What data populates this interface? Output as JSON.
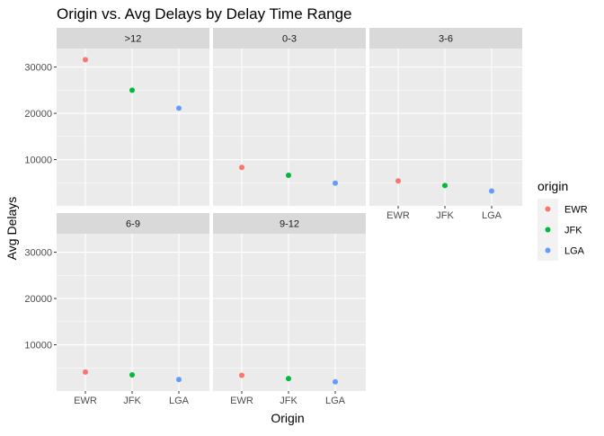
{
  "chart_data": {
    "type": "scatter",
    "title": "Origin vs. Avg Delays by Delay Time Range",
    "xlabel": "Origin",
    "ylabel": "Avg Delays",
    "categories": [
      "EWR",
      "JFK",
      "LGA"
    ],
    "ylim": [
      0,
      34000
    ],
    "yticks": [
      10000,
      20000,
      30000
    ],
    "ytick_labels": [
      "10000",
      "20000",
      "30000"
    ],
    "facet_layout": "2 rows x 3 columns, shared y-axis",
    "grid": true,
    "legend": {
      "title": "origin",
      "position": "right",
      "entries": [
        {
          "label": "EWR",
          "color": "#F8766D"
        },
        {
          "label": "JFK",
          "color": "#00BA38"
        },
        {
          "label": "LGA",
          "color": "#619CFF"
        }
      ]
    },
    "panels": [
      {
        "label": ">12",
        "values": [
          31600,
          25000,
          21100
        ]
      },
      {
        "label": "0-3",
        "values": [
          8300,
          6600,
          4900
        ]
      },
      {
        "label": "3-6",
        "values": [
          5400,
          4400,
          3200
        ]
      },
      {
        "label": "6-9",
        "values": [
          4100,
          3500,
          2500
        ]
      },
      {
        "label": "9-12",
        "values": [
          3400,
          2700,
          2000
        ]
      }
    ]
  },
  "colors": {
    "panel_bg": "#EBEBEB",
    "strip_bg": "#D9D9D9",
    "grid_major": "#FFFFFF",
    "EWR": "#F8766D",
    "JFK": "#00BA38",
    "LGA": "#619CFF"
  }
}
